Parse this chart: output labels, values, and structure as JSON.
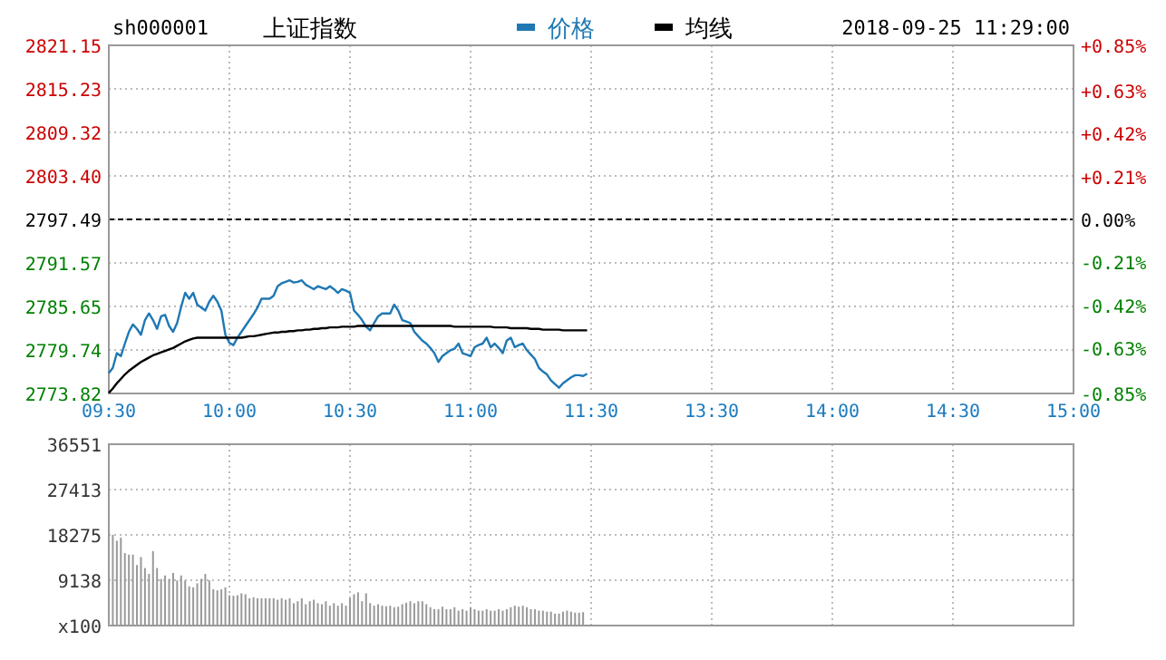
{
  "chart_data": [
    {
      "type": "line",
      "title": "上证指数",
      "subtitle": "sh000001",
      "annotations": [
        "2018-09-25 11:29:00"
      ],
      "categories": [
        "09:30",
        null,
        null,
        null,
        null,
        null,
        null,
        null,
        null,
        null,
        null,
        null,
        null,
        null,
        null,
        null,
        null,
        null,
        null,
        null,
        null,
        null,
        null,
        null,
        null,
        null,
        null,
        null,
        null,
        null,
        "10:00",
        null,
        null,
        null,
        null,
        null,
        null,
        null,
        null,
        null,
        null,
        null,
        null,
        null,
        null,
        null,
        null,
        null,
        null,
        null,
        null,
        null,
        null,
        null,
        null,
        null,
        null,
        null,
        null,
        null,
        "10:30",
        null,
        null,
        null,
        null,
        null,
        null,
        null,
        null,
        null,
        null,
        null,
        null,
        null,
        null,
        null,
        null,
        null,
        null,
        null,
        null,
        null,
        null,
        null,
        null,
        null,
        null,
        null,
        null,
        null,
        "11:00",
        null,
        null,
        null,
        null,
        null,
        null,
        null,
        null,
        null,
        null,
        null,
        null,
        null,
        null,
        null,
        null,
        null,
        null,
        null,
        null,
        null,
        null,
        null,
        null,
        null,
        null,
        null,
        null,
        null,
        "11:30",
        null,
        null,
        null,
        null,
        null,
        null,
        null,
        null,
        null,
        null,
        null,
        null,
        null,
        null,
        null,
        null,
        null,
        null,
        null,
        null,
        null,
        null,
        null,
        null,
        null,
        null,
        null,
        null,
        null,
        "13:30",
        null,
        null,
        null,
        null,
        null,
        null,
        null,
        null,
        null,
        null,
        null,
        null,
        null,
        null,
        null,
        null,
        null,
        null,
        null,
        null,
        null,
        null,
        null,
        null,
        null,
        null,
        null,
        null,
        null,
        "14:00",
        null,
        null,
        null,
        null,
        null,
        null,
        null,
        null,
        null,
        null,
        null,
        null,
        null,
        null,
        null,
        null,
        null,
        null,
        null,
        null,
        null,
        null,
        null,
        null,
        null,
        null,
        null,
        null,
        null,
        "14:30",
        null,
        null,
        null,
        null,
        null,
        null,
        null,
        null,
        null,
        null,
        null,
        null,
        null,
        null,
        null,
        null,
        null,
        null,
        null,
        null,
        null,
        null,
        null,
        null,
        null,
        null,
        null,
        null,
        null,
        "15:00"
      ],
      "ylim": [
        2773.82,
        2821.15
      ],
      "yticks": [
        2773.82,
        2779.74,
        2785.65,
        2791.57,
        2797.49,
        {
          "value": 2803.4,
          "label": "2803.40"
        },
        2809.32,
        2815.23,
        2821.15
      ],
      "y2lim": [
        -0.85,
        0.85
      ],
      "y2ticks": [
        {
          "value": -0.85,
          "label": "-0.85%"
        },
        {
          "value": -0.63,
          "label": "-0.63%"
        },
        {
          "value": -0.42,
          "label": "-0.42%"
        },
        {
          "value": -0.21,
          "label": "-0.21%"
        },
        {
          "value": 0,
          "label": "0.00%"
        },
        {
          "value": 0.21,
          "label": "+0.21%"
        },
        {
          "value": 0.42,
          "label": "+0.42%"
        },
        {
          "value": 0.63,
          "label": "+0.63%"
        },
        {
          "value": 0.85,
          "label": "+0.85%"
        }
      ],
      "ref_lines": [
        {
          "axis": "y",
          "value": 2797.49,
          "color": "#000000",
          "line_style": "dashed"
        }
      ],
      "grid": true,
      "legend": "top",
      "line_style": "solid",
      "marker": "none",
      "series": [
        {
          "name": "价格",
          "color": "#1f78b4",
          "values": [
            2776.6,
            2777.3,
            2779.3,
            2778.9,
            2780.6,
            2782.2,
            2783.2,
            2782.6,
            2781.8,
            2783.8,
            2784.7,
            2783.8,
            2782.6,
            2784.3,
            2784.5,
            2783.0,
            2782.2,
            2783.4,
            2785.6,
            2787.5,
            2786.7,
            2787.5,
            2785.9,
            2785.5,
            2785.1,
            2786.3,
            2787.1,
            2786.3,
            2785.1,
            2781.8,
            2780.7,
            2780.4,
            2781.4,
            2782.2,
            2783.0,
            2783.8,
            2784.6,
            2785.5,
            2786.7,
            2786.7,
            2786.7,
            2787.1,
            2788.4,
            2788.8,
            2789.0,
            2789.2,
            2788.9,
            2789.0,
            2789.2,
            2788.6,
            2788.3,
            2788.0,
            2788.4,
            2788.2,
            2788.0,
            2788.4,
            2788.0,
            2787.5,
            2788.0,
            2787.8,
            2787.5,
            2785.1,
            2784.5,
            2783.8,
            2782.9,
            2782.4,
            2783.4,
            2784.3,
            2784.7,
            2784.7,
            2784.7,
            2785.9,
            2785.1,
            2783.8,
            2783.6,
            2783.4,
            2782.2,
            2781.6,
            2781.0,
            2780.6,
            2780.0,
            2779.3,
            2778.1,
            2778.9,
            2779.3,
            2779.7,
            2779.9,
            2780.6,
            2779.3,
            2779.1,
            2778.9,
            2780.1,
            2780.4,
            2780.6,
            2781.4,
            2780.1,
            2780.6,
            2780.0,
            2779.3,
            2781.0,
            2781.4,
            2780.1,
            2780.4,
            2780.6,
            2779.7,
            2779.1,
            2778.5,
            2777.3,
            2776.8,
            2776.4,
            2775.6,
            2775.1,
            2774.6,
            2775.2,
            2775.6,
            2776.0,
            2776.3,
            2776.3,
            2776.2,
            2776.5,
            null,
            null,
            null,
            null,
            null,
            null,
            null,
            null,
            null,
            null,
            null,
            null,
            null,
            null,
            null,
            null,
            null,
            null,
            null,
            null,
            null,
            null,
            null,
            null,
            null,
            null,
            null,
            null,
            null,
            null,
            null,
            null,
            null,
            null,
            null,
            null,
            null,
            null,
            null,
            null,
            null,
            null,
            null,
            null,
            null,
            null,
            null,
            null,
            null,
            null,
            null,
            null,
            null,
            null,
            null,
            null,
            null,
            null,
            null,
            null,
            null,
            null,
            null,
            null,
            null,
            null,
            null,
            null,
            null,
            null,
            null,
            null,
            null,
            null,
            null,
            null,
            null,
            null,
            null,
            null,
            null,
            null,
            null,
            null,
            null,
            null,
            null,
            null,
            null,
            null,
            null,
            null,
            null,
            null,
            null,
            null,
            null,
            null,
            null,
            null,
            null,
            null,
            null,
            null,
            null,
            null,
            null,
            null,
            null,
            null,
            null,
            null,
            null,
            null,
            null,
            null,
            null,
            null,
            null,
            null,
            null
          ]
        },
        {
          "name": "均线",
          "color": "#000000",
          "values": [
            2773.9,
            2774.5,
            2775.2,
            2775.8,
            2776.4,
            2776.9,
            2777.3,
            2777.7,
            2778.1,
            2778.4,
            2778.7,
            2779.0,
            2779.2,
            2779.4,
            2779.6,
            2779.8,
            2780.0,
            2780.3,
            2780.6,
            2780.9,
            2781.1,
            2781.3,
            2781.4,
            2781.4,
            2781.4,
            2781.4,
            2781.4,
            2781.4,
            2781.4,
            2781.4,
            2781.4,
            2781.4,
            2781.4,
            2781.4,
            2781.5,
            2781.6,
            2781.6,
            2781.7,
            2781.8,
            2781.9,
            2782.0,
            2782.1,
            2782.1,
            2782.2,
            2782.2,
            2782.3,
            2782.3,
            2782.4,
            2782.4,
            2782.5,
            2782.5,
            2782.6,
            2782.6,
            2782.7,
            2782.7,
            2782.8,
            2782.8,
            2782.8,
            2782.9,
            2782.9,
            2782.9,
            2782.9,
            2783.0,
            2783.0,
            2783.0,
            2783.0,
            2783.0,
            2783.0,
            2783.0,
            2783.0,
            2783.0,
            2783.0,
            2783.0,
            2783.0,
            2783.0,
            2783.0,
            2783.0,
            2783.0,
            2783.0,
            2783.0,
            2783.0,
            2783.0,
            2783.0,
            2783.0,
            2783.0,
            2783.0,
            2782.9,
            2782.9,
            2782.9,
            2782.9,
            2782.9,
            2782.9,
            2782.9,
            2782.9,
            2782.9,
            2782.9,
            2782.8,
            2782.8,
            2782.8,
            2782.8,
            2782.7,
            2782.7,
            2782.7,
            2782.7,
            2782.7,
            2782.6,
            2782.6,
            2782.6,
            2782.5,
            2782.5,
            2782.5,
            2782.5,
            2782.5,
            2782.4,
            2782.4,
            2782.4,
            2782.4,
            2782.4,
            2782.4,
            2782.4,
            null,
            null,
            null,
            null,
            null,
            null,
            null,
            null,
            null,
            null,
            null,
            null,
            null,
            null,
            null,
            null,
            null,
            null,
            null,
            null,
            null,
            null,
            null,
            null,
            null,
            null,
            null,
            null,
            null,
            null,
            null,
            null,
            null,
            null,
            null,
            null,
            null,
            null,
            null,
            null,
            null,
            null,
            null,
            null,
            null,
            null,
            null,
            null,
            null,
            null,
            null,
            null,
            null,
            null,
            null,
            null,
            null,
            null,
            null,
            null,
            null,
            null,
            null,
            null,
            null,
            null,
            null,
            null,
            null,
            null,
            null,
            null,
            null,
            null,
            null,
            null,
            null,
            null,
            null,
            null,
            null,
            null,
            null,
            null,
            null,
            null,
            null,
            null,
            null,
            null,
            null,
            null,
            null,
            null,
            null,
            null,
            null,
            null,
            null,
            null,
            null,
            null,
            null,
            null,
            null,
            null,
            null,
            null,
            null,
            null,
            null,
            null,
            null,
            null,
            null,
            null,
            null,
            null,
            null,
            null,
            null
          ]
        }
      ]
    },
    {
      "type": "bar",
      "color": "#999999",
      "categories": [
        null,
        null,
        null,
        null,
        null,
        null,
        null,
        null,
        null,
        null,
        null,
        null,
        null,
        null,
        null,
        null,
        null,
        null,
        null,
        null,
        null,
        null,
        null,
        null,
        null,
        null,
        null,
        null,
        null,
        null,
        null,
        null,
        null,
        null,
        null,
        null,
        null,
        null,
        null,
        null,
        null,
        null,
        null,
        null,
        null,
        null,
        null,
        null,
        null,
        null,
        null,
        null,
        null,
        null,
        null,
        null,
        null,
        null,
        null,
        null,
        null,
        null,
        null,
        null,
        null,
        null,
        null,
        null,
        null,
        null,
        null,
        null,
        null,
        null,
        null,
        null,
        null,
        null,
        null,
        null,
        null,
        null,
        null,
        null,
        null,
        null,
        null,
        null,
        null,
        null,
        null,
        null,
        null,
        null,
        null,
        null,
        null,
        null,
        null,
        null,
        null,
        null,
        null,
        null,
        null,
        null,
        null,
        null,
        null,
        null,
        null,
        null,
        null,
        null,
        null,
        null,
        null,
        null,
        null,
        null,
        null,
        null,
        null,
        null,
        null,
        null,
        null,
        null,
        null,
        null,
        null,
        null,
        null,
        null,
        null,
        null,
        null,
        null,
        null,
        null,
        null,
        null,
        null,
        null,
        null,
        null,
        null,
        null,
        null,
        null,
        null,
        null,
        null,
        null,
        null,
        null,
        null,
        null,
        null,
        null,
        null,
        null,
        null,
        null,
        null,
        null,
        null,
        null,
        null,
        null,
        null,
        null,
        null,
        null,
        null,
        null,
        null,
        null,
        null,
        null,
        null,
        null,
        null,
        null,
        null,
        null,
        null,
        null,
        null,
        null,
        null,
        null,
        null,
        null,
        null,
        null,
        null,
        null,
        null,
        null,
        null,
        null,
        null,
        null,
        null,
        null,
        null,
        null,
        null,
        null,
        null,
        null,
        null,
        null,
        null,
        null,
        null,
        null,
        null,
        null,
        null,
        null,
        null,
        null,
        null,
        null,
        null,
        null,
        null,
        null,
        null,
        null,
        null,
        null,
        null,
        null,
        null,
        null,
        null,
        null,
        null
      ],
      "ylim": [
        0,
        36551
      ],
      "yticks": [
        {
          "value": 0,
          "label": "x100"
        },
        9138,
        18275,
        27413,
        36551
      ],
      "grid": true,
      "tick_labels": "y",
      "values": [
        null,
        18300,
        17100,
        17700,
        14600,
        14300,
        14300,
        12200,
        13800,
        11600,
        10400,
        15000,
        11600,
        9400,
        10100,
        9400,
        10600,
        9100,
        10100,
        9100,
        7900,
        7700,
        8500,
        9400,
        10400,
        9100,
        7300,
        7100,
        7300,
        7700,
        6100,
        6000,
        6100,
        6500,
        6300,
        5500,
        5700,
        5500,
        5500,
        5500,
        5500,
        5500,
        5200,
        5500,
        5200,
        5500,
        4500,
        4900,
        5500,
        4300,
        4900,
        5200,
        4500,
        4300,
        4900,
        4000,
        4500,
        4000,
        4500,
        4000,
        5500,
        6300,
        6700,
        4900,
        6500,
        4500,
        4000,
        4300,
        4000,
        3900,
        4000,
        3700,
        3800,
        4300,
        4600,
        4900,
        4500,
        4900,
        4900,
        4300,
        3700,
        3300,
        3300,
        3800,
        3300,
        3300,
        3700,
        3000,
        3300,
        3000,
        3700,
        3300,
        3000,
        3000,
        3300,
        3000,
        3000,
        3300,
        3000,
        3300,
        3700,
        4000,
        3800,
        4000,
        3700,
        3300,
        3300,
        3000,
        3000,
        2800,
        2800,
        2400,
        2400,
        2800,
        3000,
        2800,
        2600,
        2600,
        2700,
        null,
        null,
        null,
        null,
        null,
        null,
        null,
        null,
        null,
        null,
        null,
        null,
        null,
        null,
        null,
        null,
        null,
        null,
        null,
        null,
        null,
        null,
        null,
        null,
        null,
        null,
        null,
        null,
        null,
        null,
        null,
        null,
        null,
        null,
        null,
        null,
        null,
        null,
        null,
        null,
        null,
        null,
        null,
        null,
        null,
        null,
        null,
        null,
        null,
        null,
        null,
        null,
        null,
        null,
        null,
        null,
        null,
        null,
        null,
        null,
        null,
        null,
        null,
        null,
        null,
        null,
        null,
        null,
        null,
        null,
        null,
        null,
        null,
        null,
        null,
        null,
        null,
        null,
        null,
        null,
        null,
        null,
        null,
        null,
        null,
        null,
        null,
        null,
        null,
        null,
        null,
        null,
        null,
        null,
        null,
        null,
        null,
        null,
        null,
        null,
        null,
        null,
        null,
        null,
        null,
        null,
        null,
        null,
        null,
        null,
        null,
        null,
        null,
        null,
        null,
        null,
        null,
        null,
        null,
        null,
        null,
        null
      ]
    }
  ]
}
